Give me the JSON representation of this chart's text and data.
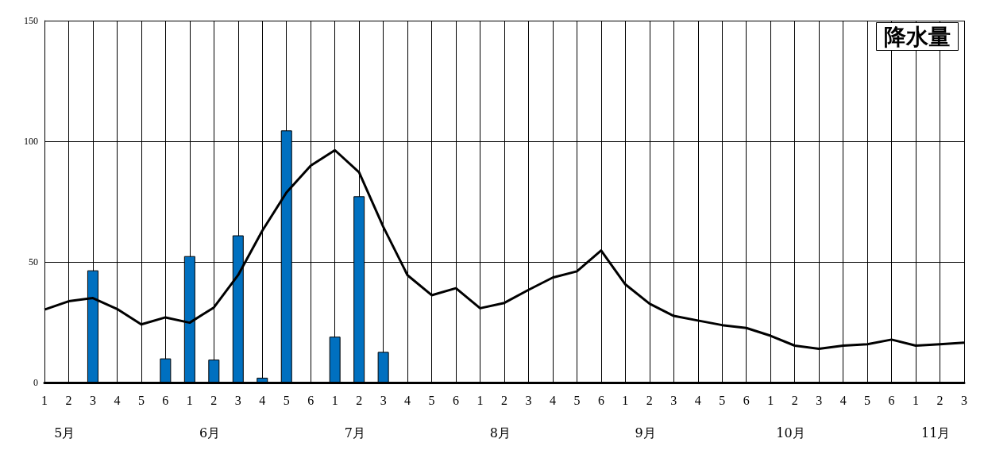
{
  "chart_data": {
    "type": "bar",
    "title": "降水量",
    "categories": [
      "1",
      "2",
      "3",
      "4",
      "5",
      "6",
      "1",
      "2",
      "3",
      "4",
      "5",
      "6",
      "1",
      "2",
      "3",
      "4",
      "5",
      "6",
      "1",
      "2",
      "3",
      "4",
      "5",
      "6",
      "1",
      "2",
      "3",
      "4",
      "5",
      "6",
      "1",
      "2",
      "3",
      "4",
      "5",
      "6",
      "1",
      "2",
      "3"
    ],
    "series": [
      {
        "color": "#0070c0",
        "values": [
          0,
          0,
          46.5,
          0,
          0,
          10,
          52.4,
          9.5,
          61,
          2,
          104.5,
          0,
          19,
          77.2,
          12.7,
          0,
          0,
          0,
          0,
          0,
          0,
          0,
          0,
          0,
          0,
          0,
          0,
          0,
          0,
          0,
          0,
          0,
          0,
          0,
          0,
          0,
          0,
          0,
          0
        ]
      },
      {
        "type": "line",
        "color": "#000000",
        "values": [
          30.2,
          33.7,
          35,
          30.5,
          24.1,
          27,
          24.8,
          31.1,
          44.5,
          62.9,
          78.8,
          89.9,
          96.3,
          87.1,
          64.5,
          44.5,
          36.2,
          39.1,
          30.8,
          33,
          38.4,
          43.5,
          46.1,
          54.7,
          40.7,
          32.7,
          27.6,
          25.7,
          23.8,
          22.6,
          19.4,
          15.3,
          14,
          15.3,
          15.9,
          17.8,
          15.3,
          15.9,
          16.5
        ]
      }
    ],
    "ylim": [
      0,
      150
    ],
    "yticks": [
      0,
      50,
      100,
      150
    ],
    "grid": true,
    "marker": "none",
    "annotations": [
      "5月",
      "6月",
      "7月",
      "8月",
      "9月",
      "10月",
      "11月"
    ]
  }
}
